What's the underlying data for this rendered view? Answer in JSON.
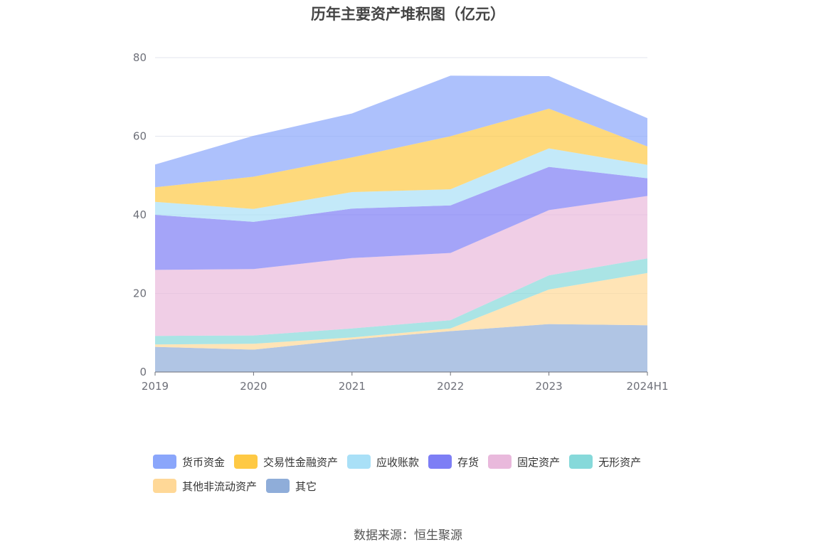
{
  "chart_data": {
    "type": "area",
    "stacked": true,
    "title": "历年主要资产堆积图（亿元）",
    "categories": [
      "2019",
      "2020",
      "2021",
      "2022",
      "2023",
      "2024H1"
    ],
    "ylim": [
      0,
      80
    ],
    "yticks": [
      0,
      20,
      40,
      60,
      80
    ],
    "grid": true,
    "legend_position": "bottom",
    "series": [
      {
        "name": "其它",
        "color": "#8fadd9",
        "values": [
          6.4,
          5.7,
          8.3,
          10.4,
          12.2,
          11.9
        ]
      },
      {
        "name": "其他非流动资产",
        "color": "#ffd897",
        "values": [
          0.6,
          1.5,
          0.5,
          0.7,
          8.8,
          13.3
        ]
      },
      {
        "name": "无形资产",
        "color": "#86d9da",
        "values": [
          2.2,
          2.1,
          2.3,
          2.1,
          3.6,
          3.7
        ]
      },
      {
        "name": "固定资产",
        "color": "#e9b9dc",
        "values": [
          16.8,
          16.9,
          17.9,
          17.1,
          16.6,
          15.9
        ]
      },
      {
        "name": "存货",
        "color": "#7d7ef5",
        "values": [
          14.0,
          12.0,
          12.6,
          12.1,
          11.0,
          4.5
        ]
      },
      {
        "name": "应收账款",
        "color": "#a9e0f7",
        "values": [
          3.3,
          3.3,
          4.2,
          4.1,
          4.7,
          3.4
        ]
      },
      {
        "name": "交易性金融资产",
        "color": "#fec944",
        "values": [
          3.7,
          8.2,
          8.8,
          13.5,
          10.1,
          4.7
        ]
      },
      {
        "name": "货币资金",
        "color": "#8aa6fb",
        "values": [
          5.8,
          10.4,
          11.2,
          15.4,
          8.3,
          7.2
        ]
      }
    ],
    "legend_order": [
      "货币资金",
      "交易性金融资产",
      "应收账款",
      "存货",
      "固定资产",
      "无形资产",
      "其他非流动资产",
      "其它"
    ]
  },
  "source": "数据来源：恒生聚源"
}
